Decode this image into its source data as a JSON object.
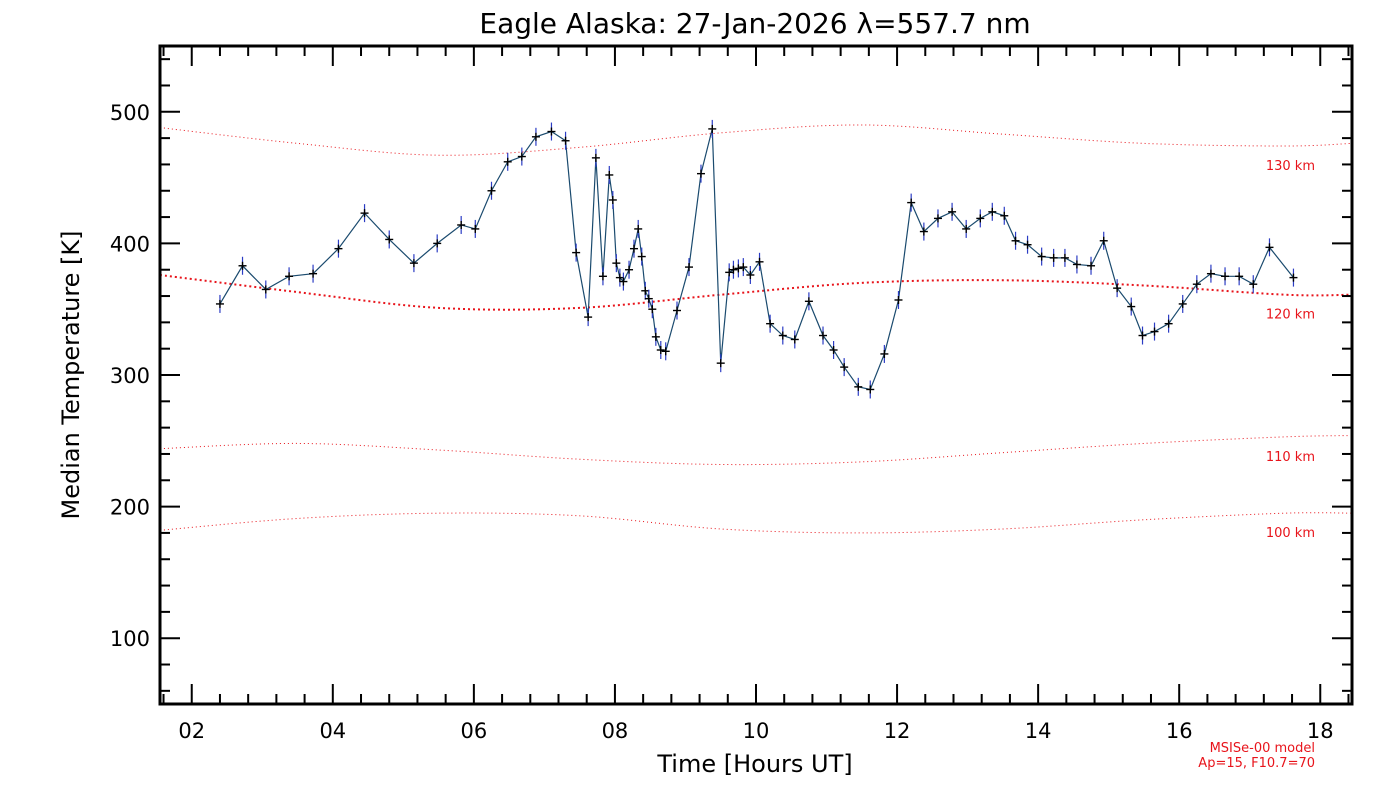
{
  "chart_data": {
    "type": "line",
    "title": "Eagle Alaska: 27-Jan-2026 λ=557.7 nm",
    "xlabel": "Time [Hours UT]",
    "ylabel": "Median Temperature [K]",
    "xlim": [
      1.55,
      18.45
    ],
    "ylim": [
      50,
      550
    ],
    "x_tick_labels": [
      "02",
      "04",
      "06",
      "08",
      "10",
      "12",
      "14",
      "16",
      "18"
    ],
    "x_tick_values": [
      2,
      4,
      6,
      8,
      10,
      12,
      14,
      16,
      18
    ],
    "y_tick_labels": [
      "100",
      "200",
      "300",
      "400",
      "500"
    ],
    "y_tick_values": [
      100,
      200,
      300,
      400,
      500
    ],
    "series": [
      {
        "name": "Median Temperature",
        "color": "#1a4a6e",
        "x": [
          2.4,
          2.72,
          3.05,
          3.38,
          3.72,
          4.08,
          4.45,
          4.8,
          5.15,
          5.48,
          5.82,
          6.02,
          6.25,
          6.48,
          6.68,
          6.88,
          7.1,
          7.3,
          7.45,
          7.62,
          7.73,
          7.83,
          7.92,
          7.97,
          8.02,
          8.07,
          8.12,
          8.2,
          8.27,
          8.33,
          8.38,
          8.43,
          8.48,
          8.53,
          8.58,
          8.65,
          8.72,
          8.88,
          9.05,
          9.22,
          9.38,
          9.5,
          9.62,
          9.68,
          9.75,
          9.82,
          9.92,
          10.05,
          10.2,
          10.38,
          10.55,
          10.75,
          10.95,
          11.1,
          11.25,
          11.45,
          11.62,
          11.82,
          12.02,
          12.2,
          12.38,
          12.58,
          12.78,
          12.98,
          13.18,
          13.35,
          13.52,
          13.68,
          13.85,
          14.05,
          14.22,
          14.38,
          14.55,
          14.75,
          14.93,
          15.12,
          15.32,
          15.48,
          15.65,
          15.85,
          16.05,
          16.25,
          16.45,
          16.65,
          16.85,
          17.05,
          17.28,
          17.62
        ],
        "values": [
          354,
          383,
          365,
          375,
          377,
          396,
          423,
          403,
          385,
          400,
          414,
          411,
          440,
          462,
          466,
          481,
          485,
          478,
          393,
          344,
          465,
          375,
          452,
          433,
          385,
          374,
          371,
          380,
          396,
          411,
          390,
          364,
          358,
          350,
          329,
          319,
          318,
          349,
          382,
          453,
          487,
          309,
          378,
          380,
          381,
          382,
          376,
          386,
          339,
          330,
          327,
          356,
          330,
          319,
          306,
          291,
          289,
          316,
          357,
          431,
          409,
          419,
          424,
          411,
          419,
          424,
          421,
          402,
          399,
          390,
          389,
          389,
          384,
          383,
          402,
          366,
          352,
          330,
          333,
          339,
          354,
          369,
          377,
          375,
          375,
          369,
          397,
          374
        ]
      }
    ],
    "model_curves": [
      {
        "label": "130 km",
        "x": [
          1.55,
          3.5,
          5.5,
          7.5,
          9.5,
          11.5,
          13.5,
          15.5,
          17.5,
          18.45
        ],
        "values": [
          488,
          476,
          467,
          473,
          484,
          490,
          483,
          476,
          474,
          476
        ]
      },
      {
        "label": "120 km",
        "x": [
          1.55,
          3.5,
          5.5,
          7.5,
          9.5,
          11.5,
          13.5,
          15.5,
          17.5,
          18.45
        ],
        "values": [
          376,
          363,
          351,
          351,
          361,
          370,
          372,
          368,
          361,
          361
        ]
      },
      {
        "label": "110 km",
        "x": [
          1.55,
          3.5,
          5.5,
          7.5,
          9.5,
          11.5,
          13.5,
          15.5,
          17.5,
          18.45
        ],
        "values": [
          244,
          248,
          243,
          236,
          232,
          234,
          241,
          248,
          253,
          254
        ]
      },
      {
        "label": "100 km",
        "x": [
          1.55,
          3.5,
          5.5,
          7.5,
          9.5,
          11.5,
          13.5,
          15.5,
          17.5,
          18.45
        ],
        "values": [
          182,
          191,
          195,
          193,
          183,
          180,
          183,
          190,
          195,
          195
        ]
      }
    ],
    "model_note_lines": [
      "MSISe-00 model",
      "Ap=15, F10.7=70"
    ],
    "colors": {
      "data": "#1a4a6e",
      "marker": "#000000",
      "model": "#e8141b"
    }
  }
}
